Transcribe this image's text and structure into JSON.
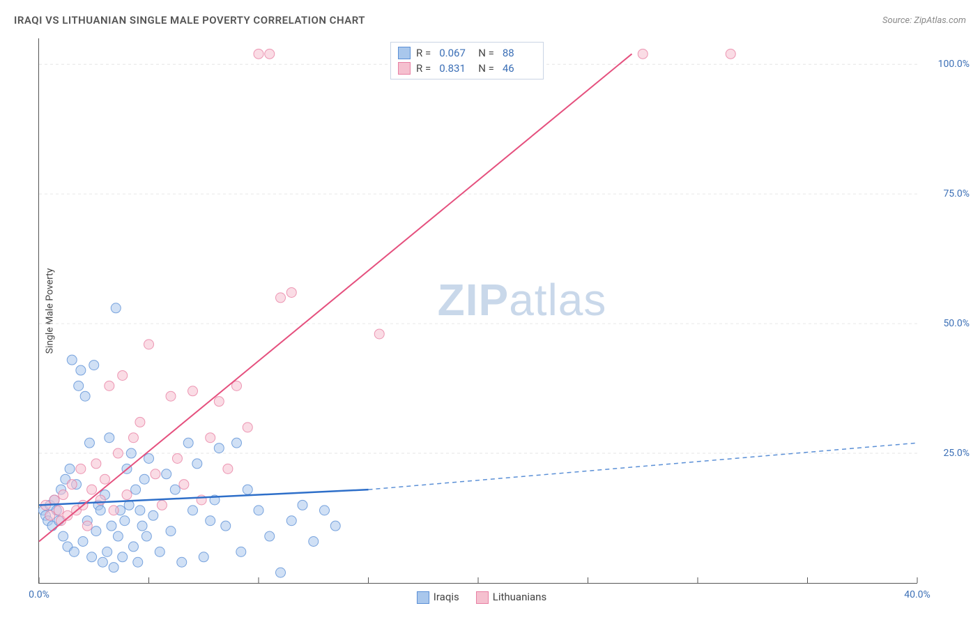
{
  "title": "IRAQI VS LITHUANIAN SINGLE MALE POVERTY CORRELATION CHART",
  "source": "Source: ZipAtlas.com",
  "y_axis_label": "Single Male Poverty",
  "watermark": {
    "bold": "ZIP",
    "rest": "atlas"
  },
  "chart": {
    "type": "scatter",
    "background_color": "#ffffff",
    "grid_color": "#e6e6e6",
    "axis_color": "#555555",
    "xlim": [
      0,
      40
    ],
    "ylim": [
      0,
      105
    ],
    "x_ticks": [
      0,
      5,
      10,
      15,
      20,
      25,
      30,
      35,
      40
    ],
    "x_tick_labels": [
      "0.0%",
      "",
      "",
      "",
      "",
      "",
      "",
      "",
      "40.0%"
    ],
    "y_ticks": [
      25,
      50,
      75,
      100
    ],
    "y_tick_labels": [
      "25.0%",
      "50.0%",
      "75.0%",
      "100.0%"
    ],
    "y_grid_dash": "4,4",
    "marker_radius": 7,
    "marker_opacity": 0.55,
    "series": [
      {
        "name": "Iraqis",
        "color_fill": "#a9c7ec",
        "color_stroke": "#5a8fd6",
        "R": "0.067",
        "N": "88",
        "points": [
          [
            0.2,
            14
          ],
          [
            0.3,
            13
          ],
          [
            0.4,
            12
          ],
          [
            0.5,
            15
          ],
          [
            0.6,
            11
          ],
          [
            0.7,
            16
          ],
          [
            0.8,
            14
          ],
          [
            0.9,
            12
          ],
          [
            1.0,
            18
          ],
          [
            1.1,
            9
          ],
          [
            1.2,
            20
          ],
          [
            1.3,
            7
          ],
          [
            1.4,
            22
          ],
          [
            1.5,
            43
          ],
          [
            1.6,
            6
          ],
          [
            1.7,
            19
          ],
          [
            1.8,
            38
          ],
          [
            1.9,
            41
          ],
          [
            2.0,
            8
          ],
          [
            2.1,
            36
          ],
          [
            2.2,
            12
          ],
          [
            2.3,
            27
          ],
          [
            2.4,
            5
          ],
          [
            2.5,
            42
          ],
          [
            2.6,
            10
          ],
          [
            2.7,
            15
          ],
          [
            2.8,
            14
          ],
          [
            2.9,
            4
          ],
          [
            3.0,
            17
          ],
          [
            3.1,
            6
          ],
          [
            3.2,
            28
          ],
          [
            3.3,
            11
          ],
          [
            3.4,
            3
          ],
          [
            3.5,
            53
          ],
          [
            3.6,
            9
          ],
          [
            3.7,
            14
          ],
          [
            3.8,
            5
          ],
          [
            3.9,
            12
          ],
          [
            4.0,
            22
          ],
          [
            4.1,
            15
          ],
          [
            4.2,
            25
          ],
          [
            4.3,
            7
          ],
          [
            4.4,
            18
          ],
          [
            4.5,
            4
          ],
          [
            4.6,
            14
          ],
          [
            4.7,
            11
          ],
          [
            4.8,
            20
          ],
          [
            4.9,
            9
          ],
          [
            5.0,
            24
          ],
          [
            5.2,
            13
          ],
          [
            5.5,
            6
          ],
          [
            5.8,
            21
          ],
          [
            6.0,
            10
          ],
          [
            6.2,
            18
          ],
          [
            6.5,
            4
          ],
          [
            6.8,
            27
          ],
          [
            7.0,
            14
          ],
          [
            7.2,
            23
          ],
          [
            7.5,
            5
          ],
          [
            7.8,
            12
          ],
          [
            8.0,
            16
          ],
          [
            8.2,
            26
          ],
          [
            8.5,
            11
          ],
          [
            9.0,
            27
          ],
          [
            9.2,
            6
          ],
          [
            9.5,
            18
          ],
          [
            10.0,
            14
          ],
          [
            10.5,
            9
          ],
          [
            11.0,
            2
          ],
          [
            11.5,
            12
          ],
          [
            12.0,
            15
          ],
          [
            12.5,
            8
          ],
          [
            13.0,
            14
          ],
          [
            13.5,
            11
          ]
        ],
        "trend": {
          "solid": {
            "x1": 0,
            "y1": 15,
            "x2": 15,
            "y2": 18,
            "width": 2.5,
            "color": "#2e6fc9"
          },
          "dashed": {
            "x1": 15,
            "y1": 18,
            "x2": 40,
            "y2": 27,
            "width": 1.5,
            "dash": "6,5",
            "color": "#5a8fd6"
          }
        }
      },
      {
        "name": "Lithuanians",
        "color_fill": "#f5c0cf",
        "color_stroke": "#e87fa3",
        "R": "0.831",
        "N": "46",
        "points": [
          [
            0.3,
            15
          ],
          [
            0.5,
            13
          ],
          [
            0.7,
            16
          ],
          [
            0.9,
            14
          ],
          [
            1.0,
            12
          ],
          [
            1.1,
            17
          ],
          [
            1.3,
            13
          ],
          [
            1.5,
            19
          ],
          [
            1.7,
            14
          ],
          [
            1.9,
            22
          ],
          [
            2.0,
            15
          ],
          [
            2.2,
            11
          ],
          [
            2.4,
            18
          ],
          [
            2.6,
            23
          ],
          [
            2.8,
            16
          ],
          [
            3.0,
            20
          ],
          [
            3.2,
            38
          ],
          [
            3.4,
            14
          ],
          [
            3.6,
            25
          ],
          [
            3.8,
            40
          ],
          [
            4.0,
            17
          ],
          [
            4.3,
            28
          ],
          [
            4.6,
            31
          ],
          [
            5.0,
            46
          ],
          [
            5.3,
            21
          ],
          [
            5.6,
            15
          ],
          [
            6.0,
            36
          ],
          [
            6.3,
            24
          ],
          [
            6.6,
            19
          ],
          [
            7.0,
            37
          ],
          [
            7.4,
            16
          ],
          [
            7.8,
            28
          ],
          [
            8.2,
            35
          ],
          [
            8.6,
            22
          ],
          [
            9.0,
            38
          ],
          [
            9.5,
            30
          ],
          [
            10.0,
            102
          ],
          [
            10.5,
            102
          ],
          [
            11.0,
            55
          ],
          [
            11.5,
            56
          ],
          [
            15.5,
            48
          ],
          [
            19.0,
            102
          ],
          [
            27.5,
            102
          ],
          [
            31.5,
            102
          ]
        ],
        "trend": {
          "solid": {
            "x1": 0,
            "y1": 8,
            "x2": 27,
            "y2": 102,
            "width": 2,
            "color": "#e5507e"
          }
        }
      }
    ]
  },
  "stats_box": {
    "border_color": "#c9d4e4",
    "label_R": "R =",
    "label_N": "N ="
  },
  "legend_labels": {
    "s1": "Iraqis",
    "s2": "Lithuanians"
  }
}
